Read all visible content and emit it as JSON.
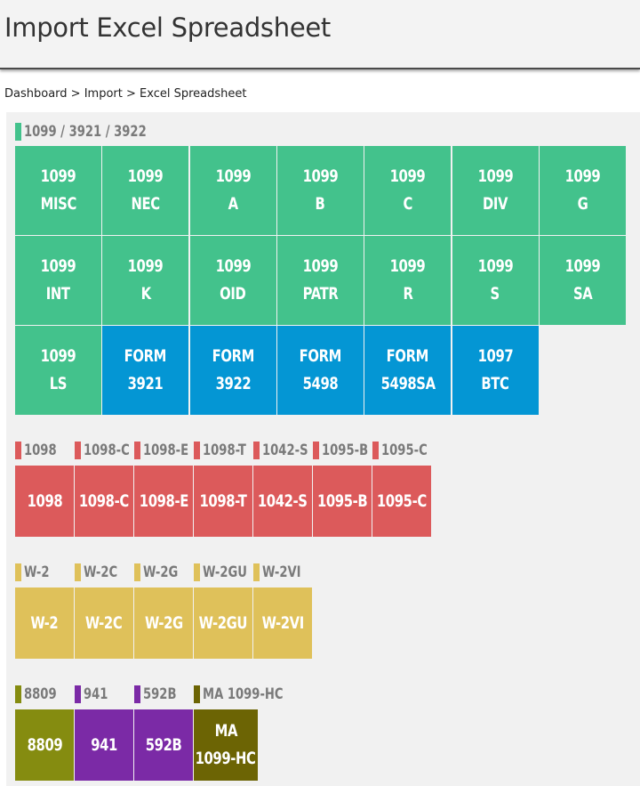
{
  "header": {
    "title": "Import Excel Spreadsheet"
  },
  "breadcrumb": {
    "dashboard": "Dashboard",
    "sep1": " > ",
    "import": "Import",
    "sep2": " > ",
    "current": "Excel Spreadsheet"
  },
  "colors": {
    "green": "#43c28c",
    "blue": "#0496d4",
    "red": "#dc5a5b",
    "yellow": "#dfc15a",
    "olive": "#858c10",
    "purple": "#7b2aa6",
    "dark_olive": "#6c6404"
  },
  "group1": {
    "label": "1099 / 3921 / 3922",
    "tiles": [
      [
        "1099",
        "MISC"
      ],
      [
        "1099",
        "NEC"
      ],
      [
        "1099",
        "A"
      ],
      [
        "1099",
        "B"
      ],
      [
        "1099",
        "C"
      ],
      [
        "1099",
        "DIV"
      ],
      [
        "1099",
        "G"
      ],
      [
        "1099",
        "INT"
      ],
      [
        "1099",
        "K"
      ],
      [
        "1099",
        "OID"
      ],
      [
        "1099",
        "PATR"
      ],
      [
        "1099",
        "R"
      ],
      [
        "1099",
        "S"
      ],
      [
        "1099",
        "SA"
      ],
      [
        "1099",
        "LS"
      ],
      [
        "FORM",
        "3921"
      ],
      [
        "FORM",
        "3922"
      ],
      [
        "FORM",
        "5498"
      ],
      [
        "FORM",
        "5498SA"
      ],
      [
        "1097",
        "BTC"
      ]
    ]
  },
  "group2": {
    "labels": [
      "1098",
      "1098-C",
      "1098-E",
      "1098-T",
      "1042-S",
      "1095-B",
      "1095-C"
    ],
    "tiles": [
      "1098",
      "1098-C",
      "1098-E",
      "1098-T",
      "1042-S",
      "1095-B",
      "1095-C"
    ]
  },
  "group3": {
    "labels": [
      "W-2",
      "W-2C",
      "W-2G",
      "W-2GU",
      "W-2VI"
    ],
    "tiles": [
      "W-2",
      "W-2C",
      "W-2G",
      "W-2GU",
      "W-2VI"
    ]
  },
  "group4": {
    "labels": [
      "8809",
      "941",
      "592B",
      "MA 1099-HC"
    ],
    "tiles": [
      [
        "8809"
      ],
      [
        "941"
      ],
      [
        "592B"
      ],
      [
        "MA",
        "1099-HC"
      ]
    ]
  }
}
